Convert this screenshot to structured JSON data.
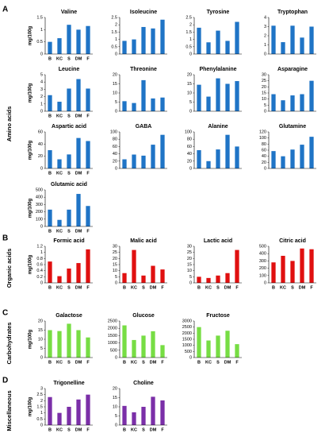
{
  "panels": [
    {
      "letter": "A",
      "label": "Amino acids",
      "color": "#1f74c6",
      "charts": [
        {
          "type": "bar",
          "title": "Valine",
          "y_label": "mg/100g",
          "categories": [
            "B",
            "KC",
            "S",
            "DM",
            "F"
          ],
          "values": [
            0.5,
            0.65,
            1.2,
            1.0,
            1.15
          ],
          "ylim": [
            0,
            1.5
          ],
          "yticks": [
            0,
            0.5,
            1,
            1.5
          ]
        },
        {
          "type": "bar",
          "title": "Isoleucine",
          "values": [
            0.9,
            1.0,
            1.85,
            1.75,
            2.35
          ],
          "ylim": [
            0,
            2.5
          ],
          "yticks": [
            0,
            0.5,
            1,
            1.5,
            2,
            2.5
          ]
        },
        {
          "type": "bar",
          "title": "Tyrosine",
          "values": [
            1.8,
            0.8,
            1.6,
            0.9,
            2.2
          ],
          "ylim": [
            0,
            2.5
          ],
          "yticks": [
            0,
            0.5,
            1,
            1.5,
            2,
            2.5
          ]
        },
        {
          "type": "bar",
          "title": "Tryptophan",
          "values": [
            3.1,
            1.3,
            3.1,
            1.8,
            3.0
          ],
          "ylim": [
            0,
            4
          ],
          "yticks": [
            0,
            1,
            2,
            3,
            4
          ]
        },
        {
          "type": "bar",
          "title": "Leucine",
          "y_label": "mg/100g",
          "categories": [
            "B",
            "KC",
            "S",
            "DM",
            "F"
          ],
          "values": [
            2.2,
            1.3,
            3.1,
            4.4,
            3.1
          ],
          "ylim": [
            0,
            5
          ],
          "yticks": [
            0,
            1,
            2,
            3,
            4,
            5
          ]
        },
        {
          "type": "bar",
          "title": "Threonine",
          "values": [
            5.5,
            4.5,
            17,
            7,
            7.5
          ],
          "ylim": [
            0,
            20
          ],
          "yticks": [
            0,
            5,
            10,
            15,
            20
          ]
        },
        {
          "type": "bar",
          "title": "Phenylalanine",
          "values": [
            14.5,
            8,
            18,
            15,
            16.5
          ],
          "ylim": [
            0,
            20
          ],
          "yticks": [
            0,
            5,
            10,
            15,
            20
          ]
        },
        {
          "type": "bar",
          "title": "Asparagine",
          "values": [
            14,
            9,
            13,
            14,
            25
          ],
          "ylim": [
            0,
            30
          ],
          "yticks": [
            0,
            5,
            10,
            15,
            20,
            25,
            30
          ]
        },
        {
          "type": "bar",
          "title": "Aspartic acid",
          "y_label": "mg/100g",
          "categories": [
            "B",
            "KC",
            "S",
            "DM",
            "F"
          ],
          "values": [
            30,
            15,
            23,
            50,
            45
          ],
          "ylim": [
            0,
            60
          ],
          "yticks": [
            0,
            20,
            40,
            60
          ]
        },
        {
          "type": "bar",
          "title": "GABA",
          "values": [
            25,
            38,
            35,
            65,
            92
          ],
          "ylim": [
            0,
            100
          ],
          "yticks": [
            0,
            20,
            40,
            60,
            80,
            100
          ]
        },
        {
          "type": "bar",
          "title": "Alanine",
          "values": [
            50,
            20,
            52,
            92,
            60
          ],
          "ylim": [
            0,
            100
          ],
          "yticks": [
            0,
            20,
            40,
            60,
            80,
            100
          ]
        },
        {
          "type": "bar",
          "title": "Glutamine",
          "values": [
            57,
            40,
            62,
            78,
            104
          ],
          "ylim": [
            0,
            120
          ],
          "yticks": [
            0,
            20,
            40,
            60,
            80,
            100,
            120
          ]
        },
        {
          "type": "bar",
          "title": "Glutamic acid",
          "y_label": "mg/100g",
          "categories": [
            "B",
            "KC",
            "S",
            "DM",
            "F"
          ],
          "values": [
            230,
            90,
            230,
            445,
            280
          ],
          "ylim": [
            0,
            500
          ],
          "yticks": [
            0,
            100,
            200,
            300,
            400,
            500
          ]
        }
      ]
    },
    {
      "letter": "B",
      "label": "Organic acids",
      "color": "#e01010",
      "charts": [
        {
          "type": "bar",
          "title": "Formic acid",
          "y_label": "mg/100g",
          "categories": [
            "B",
            "KC",
            "S",
            "DM",
            "F"
          ],
          "values": [
            0.7,
            0.22,
            0.47,
            0.65,
            1.1
          ],
          "ylim": [
            0,
            1.2
          ],
          "yticks": [
            0,
            0.2,
            0.4,
            0.6,
            0.8,
            1,
            1.2
          ]
        },
        {
          "type": "bar",
          "title": "Malic acid",
          "categories": [
            "B",
            "KC",
            "S",
            "DM",
            "F"
          ],
          "values": [
            8,
            27,
            6,
            14,
            11
          ],
          "ylim": [
            0,
            30
          ],
          "yticks": [
            0,
            5,
            10,
            15,
            20,
            25,
            30
          ]
        },
        {
          "type": "bar",
          "title": "Lactic acid",
          "categories": [
            "B",
            "KC",
            "S",
            "DM",
            "F"
          ],
          "values": [
            5,
            4,
            6,
            8,
            27
          ],
          "ylim": [
            0,
            30
          ],
          "yticks": [
            0,
            5,
            10,
            15,
            20,
            25,
            30
          ]
        },
        {
          "type": "bar",
          "title": "Citric acid",
          "categories": [
            "B",
            "KC",
            "S",
            "DM",
            "F"
          ],
          "values": [
            280,
            370,
            300,
            470,
            460
          ],
          "ylim": [
            0,
            500
          ],
          "yticks": [
            0,
            100,
            200,
            300,
            400,
            500
          ]
        }
      ]
    },
    {
      "letter": "C",
      "label": "Carbohydrates",
      "color": "#77dd44",
      "charts": [
        {
          "type": "bar",
          "title": "Galactose",
          "y_label": "mg/100g",
          "categories": [
            "B",
            "KC",
            "S",
            "DM",
            "F"
          ],
          "values": [
            15,
            14.5,
            18.5,
            15,
            11
          ],
          "ylim": [
            0,
            20
          ],
          "yticks": [
            0,
            5,
            10,
            15,
            20
          ]
        },
        {
          "type": "bar",
          "title": "Glucose",
          "categories": [
            "B",
            "KC",
            "S",
            "DM",
            "F"
          ],
          "values": [
            2200,
            1200,
            1500,
            1800,
            850
          ],
          "ylim": [
            0,
            2500
          ],
          "yticks": [
            0,
            500,
            1000,
            1500,
            2000,
            2500
          ]
        },
        {
          "type": "bar",
          "title": "Fructose",
          "categories": [
            "B",
            "KC",
            "S",
            "DM",
            "F"
          ],
          "values": [
            2500,
            1400,
            1800,
            2200,
            1100
          ],
          "ylim": [
            0,
            3000
          ],
          "yticks": [
            0,
            500,
            1000,
            1500,
            2000,
            2500,
            3000
          ]
        }
      ]
    },
    {
      "letter": "D",
      "label": "Miscellaneous",
      "color": "#7b2fa8",
      "charts": [
        {
          "type": "bar",
          "title": "Trigonelline",
          "y_label": "mg/100g",
          "categories": [
            "B",
            "KC",
            "S",
            "DM",
            "F"
          ],
          "values": [
            2.3,
            1.0,
            1.5,
            2.1,
            2.5
          ],
          "ylim": [
            0,
            3
          ],
          "yticks": [
            0,
            0.5,
            1,
            1.5,
            2,
            2.5,
            3
          ]
        },
        {
          "type": "bar",
          "title": "Choline",
          "categories": [
            "B",
            "KC",
            "S",
            "DM",
            "F"
          ],
          "values": [
            10.5,
            7,
            10,
            15.5,
            13.5
          ],
          "ylim": [
            0,
            20
          ],
          "yticks": [
            0,
            5,
            10,
            15,
            20
          ]
        }
      ]
    }
  ]
}
